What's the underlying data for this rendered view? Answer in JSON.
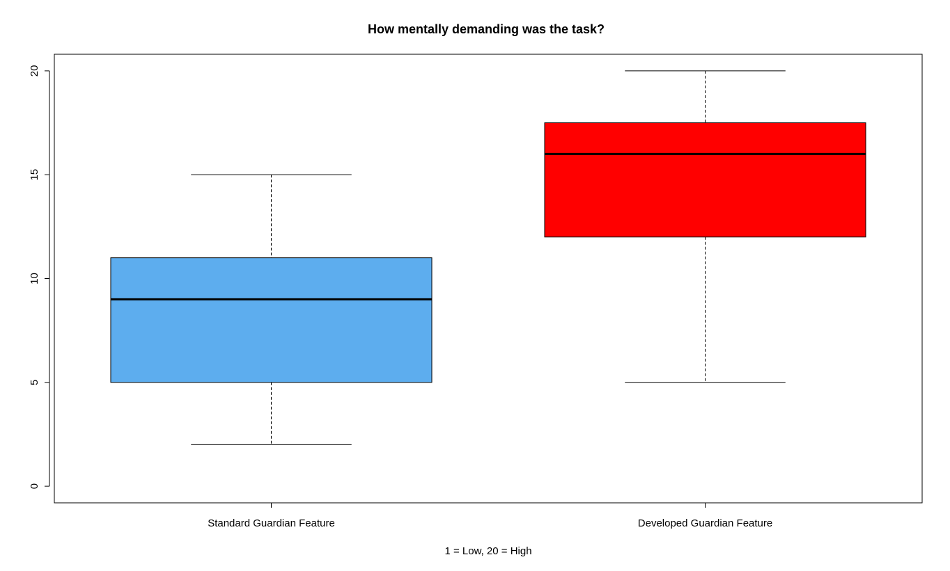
{
  "chart_data": {
    "type": "boxplot",
    "title": "How mentally demanding was the task?",
    "xlabel": "1 = Low, 20 = High",
    "ylabel": "",
    "ylim": [
      -0.8,
      20.8
    ],
    "yticks": [
      "0",
      "5",
      "10",
      "15",
      "20"
    ],
    "grid": false,
    "categories": [
      "Standard Guardian Feature",
      "Developed Guardian Feature"
    ],
    "boxes": [
      {
        "category": "Standard Guardian Feature",
        "min": 2,
        "q1": 5,
        "median": 9,
        "q3": 11,
        "max": 15,
        "color": "#5DADEE"
      },
      {
        "category": "Developed Guardian Feature",
        "min": 5,
        "q1": 12,
        "median": 16,
        "q3": 17.5,
        "max": 20,
        "color": "#FF0000"
      }
    ]
  }
}
